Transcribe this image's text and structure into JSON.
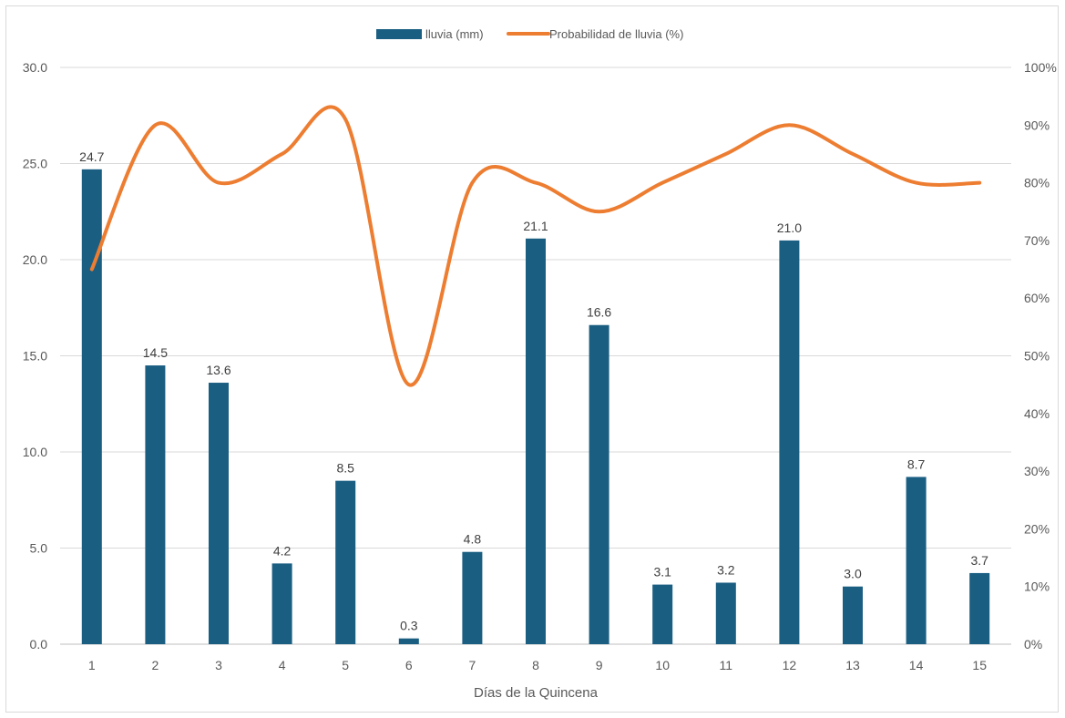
{
  "chart_data": {
    "type": "bar",
    "categories": [
      "1",
      "2",
      "3",
      "4",
      "5",
      "6",
      "7",
      "8",
      "9",
      "10",
      "11",
      "12",
      "13",
      "14",
      "15"
    ],
    "series": [
      {
        "name": "lluvia (mm)",
        "type": "bar",
        "axis": "left",
        "color": "#1a5e82",
        "values": [
          24.7,
          14.5,
          13.6,
          4.2,
          8.5,
          0.3,
          4.8,
          21.1,
          16.6,
          3.1,
          3.2,
          21.0,
          3.0,
          8.7,
          3.7
        ],
        "labels": [
          "24.7",
          "14.5",
          "13.6",
          "4.2",
          "8.5",
          "0.3",
          "4.8",
          "21.1",
          "16.6",
          "3.1",
          "3.2",
          "21.0",
          "3.0",
          "8.7",
          "3.7"
        ]
      },
      {
        "name": "Probabilidad de lluvia (%)",
        "type": "line",
        "smooth": true,
        "axis": "right",
        "color": "#ed7d31",
        "values": [
          65,
          90,
          80,
          85,
          91,
          45,
          80,
          80,
          75,
          80,
          85,
          90,
          85,
          80,
          80
        ]
      }
    ],
    "xlabel": "Días de la Quincena",
    "ylabel": "",
    "y_left": {
      "min": 0,
      "max": 30,
      "ticks": [
        "0.0",
        "5.0",
        "10.0",
        "15.0",
        "20.0",
        "25.0",
        "30.0"
      ]
    },
    "y_right": {
      "min": 0,
      "max": 100,
      "ticks": [
        "0%",
        "10%",
        "20%",
        "30%",
        "40%",
        "50%",
        "60%",
        "70%",
        "80%",
        "90%",
        "100%"
      ]
    },
    "grid": true,
    "legend_position": "top-center"
  }
}
